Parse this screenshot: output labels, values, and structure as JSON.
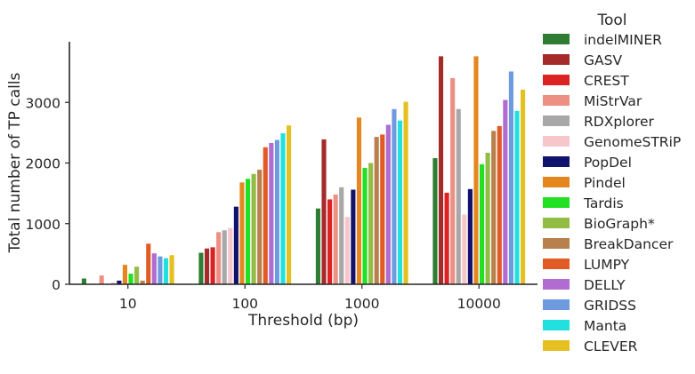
{
  "chart_data": {
    "type": "bar",
    "xlabel": "Threshold (bp)",
    "ylabel": "Total number of TP calls",
    "categories": [
      "10",
      "100",
      "1000",
      "10000"
    ],
    "ylim": [
      0,
      4000
    ],
    "yticks": [
      0,
      1000,
      2000,
      3000
    ],
    "grid": false,
    "legend": {
      "title": "Tool",
      "placement": "right"
    },
    "series": [
      {
        "name": "indelMINER",
        "color": "#2e7d32",
        "values": [
          95,
          520,
          1250,
          2080
        ]
      },
      {
        "name": "GASV",
        "color": "#a52a2a",
        "values": [
          0,
          590,
          2390,
          3760
        ]
      },
      {
        "name": "CREST",
        "color": "#dd2222",
        "values": [
          0,
          610,
          1400,
          1510
        ]
      },
      {
        "name": "MiStrVar",
        "color": "#ee8f84",
        "values": [
          145,
          860,
          1480,
          3400
        ]
      },
      {
        "name": "RDXplorer",
        "color": "#a8a8a8",
        "values": [
          10,
          890,
          1600,
          2890
        ]
      },
      {
        "name": "GenomeSTRiP",
        "color": "#f7c6cb",
        "values": [
          30,
          930,
          1110,
          1150
        ]
      },
      {
        "name": "PopDel",
        "color": "#11116e",
        "values": [
          60,
          1280,
          1560,
          1570
        ]
      },
      {
        "name": "Pindel",
        "color": "#e5871e",
        "values": [
          320,
          1680,
          2750,
          3760
        ]
      },
      {
        "name": "Tardis",
        "color": "#22e022",
        "values": [
          175,
          1740,
          1920,
          1980
        ]
      },
      {
        "name": "BioGraph*",
        "color": "#92bd45",
        "values": [
          290,
          1820,
          2000,
          2170
        ]
      },
      {
        "name": "BreakDancer",
        "color": "#b8804c",
        "values": [
          60,
          1890,
          2430,
          2530
        ]
      },
      {
        "name": "LUMPY",
        "color": "#e25b24",
        "values": [
          670,
          2260,
          2470,
          2610
        ]
      },
      {
        "name": "DELLY",
        "color": "#b06cd0",
        "values": [
          510,
          2330,
          2630,
          3040
        ]
      },
      {
        "name": "GRIDSS",
        "color": "#6e9be0",
        "values": [
          460,
          2380,
          2890,
          3510
        ]
      },
      {
        "name": "Manta",
        "color": "#22e0e0",
        "values": [
          430,
          2490,
          2700,
          2860
        ]
      },
      {
        "name": "CLEVER",
        "color": "#e5c021",
        "values": [
          480,
          2620,
          3010,
          3210
        ]
      }
    ]
  }
}
